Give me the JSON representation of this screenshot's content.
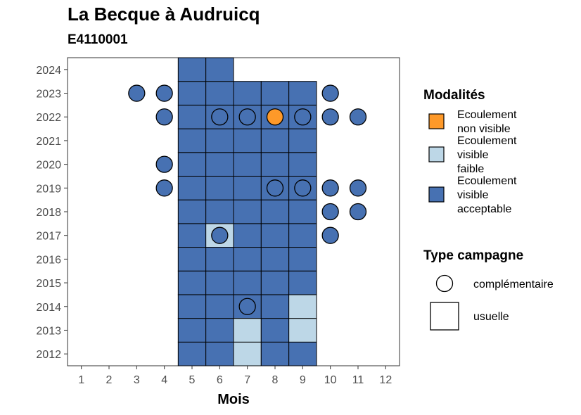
{
  "chart_data": {
    "type": "heatmap",
    "title": "La Becque à Audruicq",
    "subtitle": "E4110001",
    "xlabel": "Mois",
    "ylabel": "",
    "x_ticks": [
      "1",
      "2",
      "3",
      "4",
      "5",
      "6",
      "7",
      "8",
      "9",
      "10",
      "11",
      "12"
    ],
    "y_ticks": [
      "2012",
      "2013",
      "2014",
      "2015",
      "2016",
      "2017",
      "2018",
      "2019",
      "2020",
      "2021",
      "2022",
      "2023",
      "2024"
    ],
    "xlim": [
      0.5,
      12.5
    ],
    "ylim": [
      2011.5,
      2024.5
    ],
    "grid": false,
    "legend_position": "right",
    "colors": {
      "non_visible": "#FE9929",
      "faible": "#BDD7E7",
      "acceptable": "#4771B2"
    },
    "legends": {
      "modalites": {
        "title": "Modalités",
        "items": [
          {
            "key": "non_visible",
            "label": [
              "Ecoulement",
              "non visible"
            ]
          },
          {
            "key": "faible",
            "label": [
              "Ecoulement",
              "visible",
              "faible"
            ]
          },
          {
            "key": "acceptable",
            "label": [
              "Ecoulement",
              "visible",
              "acceptable"
            ]
          }
        ]
      },
      "type_campagne": {
        "title": "Type campagne",
        "items": [
          {
            "key": "complementaire",
            "label": "complémentaire"
          },
          {
            "key": "usuelle",
            "label": "usuelle"
          }
        ]
      }
    },
    "usuelle": [
      {
        "year": 2012,
        "month": 5,
        "v": "acceptable"
      },
      {
        "year": 2012,
        "month": 6,
        "v": "acceptable"
      },
      {
        "year": 2012,
        "month": 7,
        "v": "faible"
      },
      {
        "year": 2012,
        "month": 8,
        "v": "acceptable"
      },
      {
        "year": 2012,
        "month": 9,
        "v": "acceptable"
      },
      {
        "year": 2013,
        "month": 5,
        "v": "acceptable"
      },
      {
        "year": 2013,
        "month": 6,
        "v": "acceptable"
      },
      {
        "year": 2013,
        "month": 7,
        "v": "faible"
      },
      {
        "year": 2013,
        "month": 8,
        "v": "acceptable"
      },
      {
        "year": 2013,
        "month": 9,
        "v": "faible"
      },
      {
        "year": 2014,
        "month": 5,
        "v": "acceptable"
      },
      {
        "year": 2014,
        "month": 6,
        "v": "acceptable"
      },
      {
        "year": 2014,
        "month": 7,
        "v": "acceptable"
      },
      {
        "year": 2014,
        "month": 8,
        "v": "acceptable"
      },
      {
        "year": 2014,
        "month": 9,
        "v": "faible"
      },
      {
        "year": 2015,
        "month": 5,
        "v": "acceptable"
      },
      {
        "year": 2015,
        "month": 6,
        "v": "acceptable"
      },
      {
        "year": 2015,
        "month": 7,
        "v": "acceptable"
      },
      {
        "year": 2015,
        "month": 8,
        "v": "acceptable"
      },
      {
        "year": 2015,
        "month": 9,
        "v": "acceptable"
      },
      {
        "year": 2016,
        "month": 5,
        "v": "acceptable"
      },
      {
        "year": 2016,
        "month": 6,
        "v": "acceptable"
      },
      {
        "year": 2016,
        "month": 7,
        "v": "acceptable"
      },
      {
        "year": 2016,
        "month": 8,
        "v": "acceptable"
      },
      {
        "year": 2016,
        "month": 9,
        "v": "acceptable"
      },
      {
        "year": 2017,
        "month": 5,
        "v": "acceptable"
      },
      {
        "year": 2017,
        "month": 6,
        "v": "faible"
      },
      {
        "year": 2017,
        "month": 7,
        "v": "acceptable"
      },
      {
        "year": 2017,
        "month": 8,
        "v": "acceptable"
      },
      {
        "year": 2017,
        "month": 9,
        "v": "acceptable"
      },
      {
        "year": 2018,
        "month": 5,
        "v": "acceptable"
      },
      {
        "year": 2018,
        "month": 6,
        "v": "acceptable"
      },
      {
        "year": 2018,
        "month": 7,
        "v": "acceptable"
      },
      {
        "year": 2018,
        "month": 8,
        "v": "acceptable"
      },
      {
        "year": 2018,
        "month": 9,
        "v": "acceptable"
      },
      {
        "year": 2019,
        "month": 5,
        "v": "acceptable"
      },
      {
        "year": 2019,
        "month": 6,
        "v": "acceptable"
      },
      {
        "year": 2019,
        "month": 7,
        "v": "acceptable"
      },
      {
        "year": 2019,
        "month": 8,
        "v": "acceptable"
      },
      {
        "year": 2019,
        "month": 9,
        "v": "acceptable"
      },
      {
        "year": 2020,
        "month": 5,
        "v": "acceptable"
      },
      {
        "year": 2020,
        "month": 6,
        "v": "acceptable"
      },
      {
        "year": 2020,
        "month": 7,
        "v": "acceptable"
      },
      {
        "year": 2020,
        "month": 8,
        "v": "acceptable"
      },
      {
        "year": 2020,
        "month": 9,
        "v": "acceptable"
      },
      {
        "year": 2021,
        "month": 5,
        "v": "acceptable"
      },
      {
        "year": 2021,
        "month": 6,
        "v": "acceptable"
      },
      {
        "year": 2021,
        "month": 7,
        "v": "acceptable"
      },
      {
        "year": 2021,
        "month": 8,
        "v": "acceptable"
      },
      {
        "year": 2021,
        "month": 9,
        "v": "acceptable"
      },
      {
        "year": 2022,
        "month": 5,
        "v": "acceptable"
      },
      {
        "year": 2022,
        "month": 6,
        "v": "acceptable"
      },
      {
        "year": 2022,
        "month": 7,
        "v": "acceptable"
      },
      {
        "year": 2022,
        "month": 8,
        "v": "acceptable"
      },
      {
        "year": 2022,
        "month": 9,
        "v": "acceptable"
      },
      {
        "year": 2023,
        "month": 5,
        "v": "acceptable"
      },
      {
        "year": 2023,
        "month": 6,
        "v": "acceptable"
      },
      {
        "year": 2023,
        "month": 7,
        "v": "acceptable"
      },
      {
        "year": 2023,
        "month": 8,
        "v": "acceptable"
      },
      {
        "year": 2023,
        "month": 9,
        "v": "acceptable"
      },
      {
        "year": 2024,
        "month": 5,
        "v": "acceptable"
      },
      {
        "year": 2024,
        "month": 6,
        "v": "acceptable"
      }
    ],
    "complementaire": [
      {
        "year": 2023,
        "month": 3,
        "v": "acceptable"
      },
      {
        "year": 2023,
        "month": 4,
        "v": "acceptable"
      },
      {
        "year": 2023,
        "month": 10,
        "v": "acceptable"
      },
      {
        "year": 2022,
        "month": 4,
        "v": "acceptable"
      },
      {
        "year": 2022,
        "month": 6,
        "v": "acceptable"
      },
      {
        "year": 2022,
        "month": 7,
        "v": "acceptable"
      },
      {
        "year": 2022,
        "month": 8,
        "v": "non_visible"
      },
      {
        "year": 2022,
        "month": 9,
        "v": "acceptable"
      },
      {
        "year": 2022,
        "month": 10,
        "v": "acceptable"
      },
      {
        "year": 2022,
        "month": 11,
        "v": "acceptable"
      },
      {
        "year": 2020,
        "month": 4,
        "v": "acceptable"
      },
      {
        "year": 2019,
        "month": 4,
        "v": "acceptable"
      },
      {
        "year": 2019,
        "month": 8,
        "v": "acceptable"
      },
      {
        "year": 2019,
        "month": 9,
        "v": "acceptable"
      },
      {
        "year": 2019,
        "month": 10,
        "v": "acceptable"
      },
      {
        "year": 2019,
        "month": 11,
        "v": "acceptable"
      },
      {
        "year": 2018,
        "month": 10,
        "v": "acceptable"
      },
      {
        "year": 2018,
        "month": 11,
        "v": "acceptable"
      },
      {
        "year": 2017,
        "month": 6,
        "v": "acceptable"
      },
      {
        "year": 2017,
        "month": 10,
        "v": "acceptable"
      },
      {
        "year": 2014,
        "month": 7,
        "v": "acceptable"
      }
    ]
  }
}
